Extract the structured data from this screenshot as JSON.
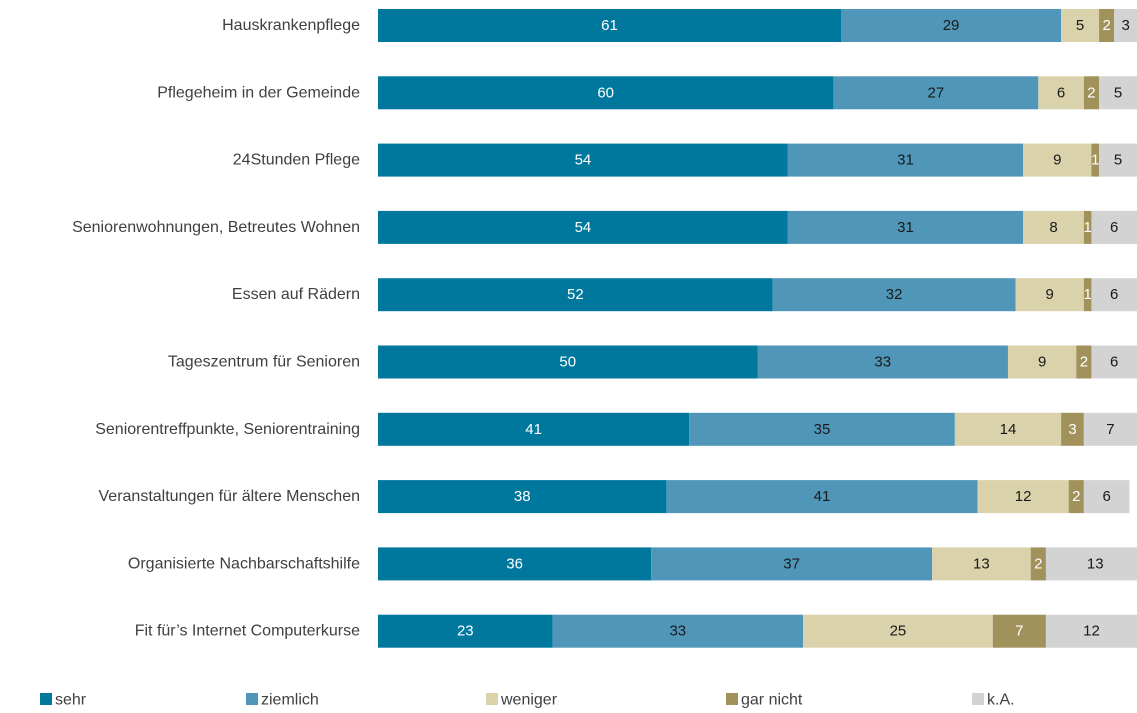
{
  "chart_data": {
    "type": "bar",
    "orientation": "horizontal",
    "stacked": true,
    "title": "",
    "xlabel": "",
    "ylabel": "",
    "xlim": [
      0,
      100
    ],
    "grid": false,
    "legend_position": "bottom",
    "categories": [
      "Hauskrankenpflege",
      "Pflegeheim in der Gemeinde",
      "24Stunden Pflege",
      "Seniorenwohnungen, Betreutes Wohnen",
      "Essen auf Rädern",
      "Tageszentrum für Senioren",
      "Seniorentreffpunkte, Seniorentraining",
      "Veranstaltungen für ältere Menschen",
      "Organisierte Nachbarschaftshilfe",
      "Fit für’s Internet Computerkurse"
    ],
    "series": [
      {
        "name": "sehr",
        "color": "#00789d",
        "label_color": "#ffffff",
        "values": [
          61,
          60,
          54,
          54,
          52,
          50,
          41,
          38,
          36,
          23
        ]
      },
      {
        "name": "ziemlich",
        "color": "#4f96b8",
        "label_color": "#1a1a1a",
        "values": [
          29,
          27,
          31,
          31,
          32,
          33,
          35,
          41,
          37,
          33
        ]
      },
      {
        "name": "weniger",
        "color": "#d9d2ab",
        "label_color": "#1a1a1a",
        "values": [
          5,
          6,
          9,
          8,
          9,
          9,
          14,
          12,
          13,
          25
        ]
      },
      {
        "name": "gar nicht",
        "color": "#a1925c",
        "label_color": "#ffffff",
        "values": [
          2,
          2,
          1,
          1,
          1,
          2,
          3,
          2,
          2,
          7
        ]
      },
      {
        "name": "k.A.",
        "color": "#d3d3d3",
        "label_color": "#1a1a1a",
        "values": [
          3,
          5,
          5,
          6,
          6,
          6,
          7,
          6,
          13,
          12
        ]
      }
    ]
  }
}
